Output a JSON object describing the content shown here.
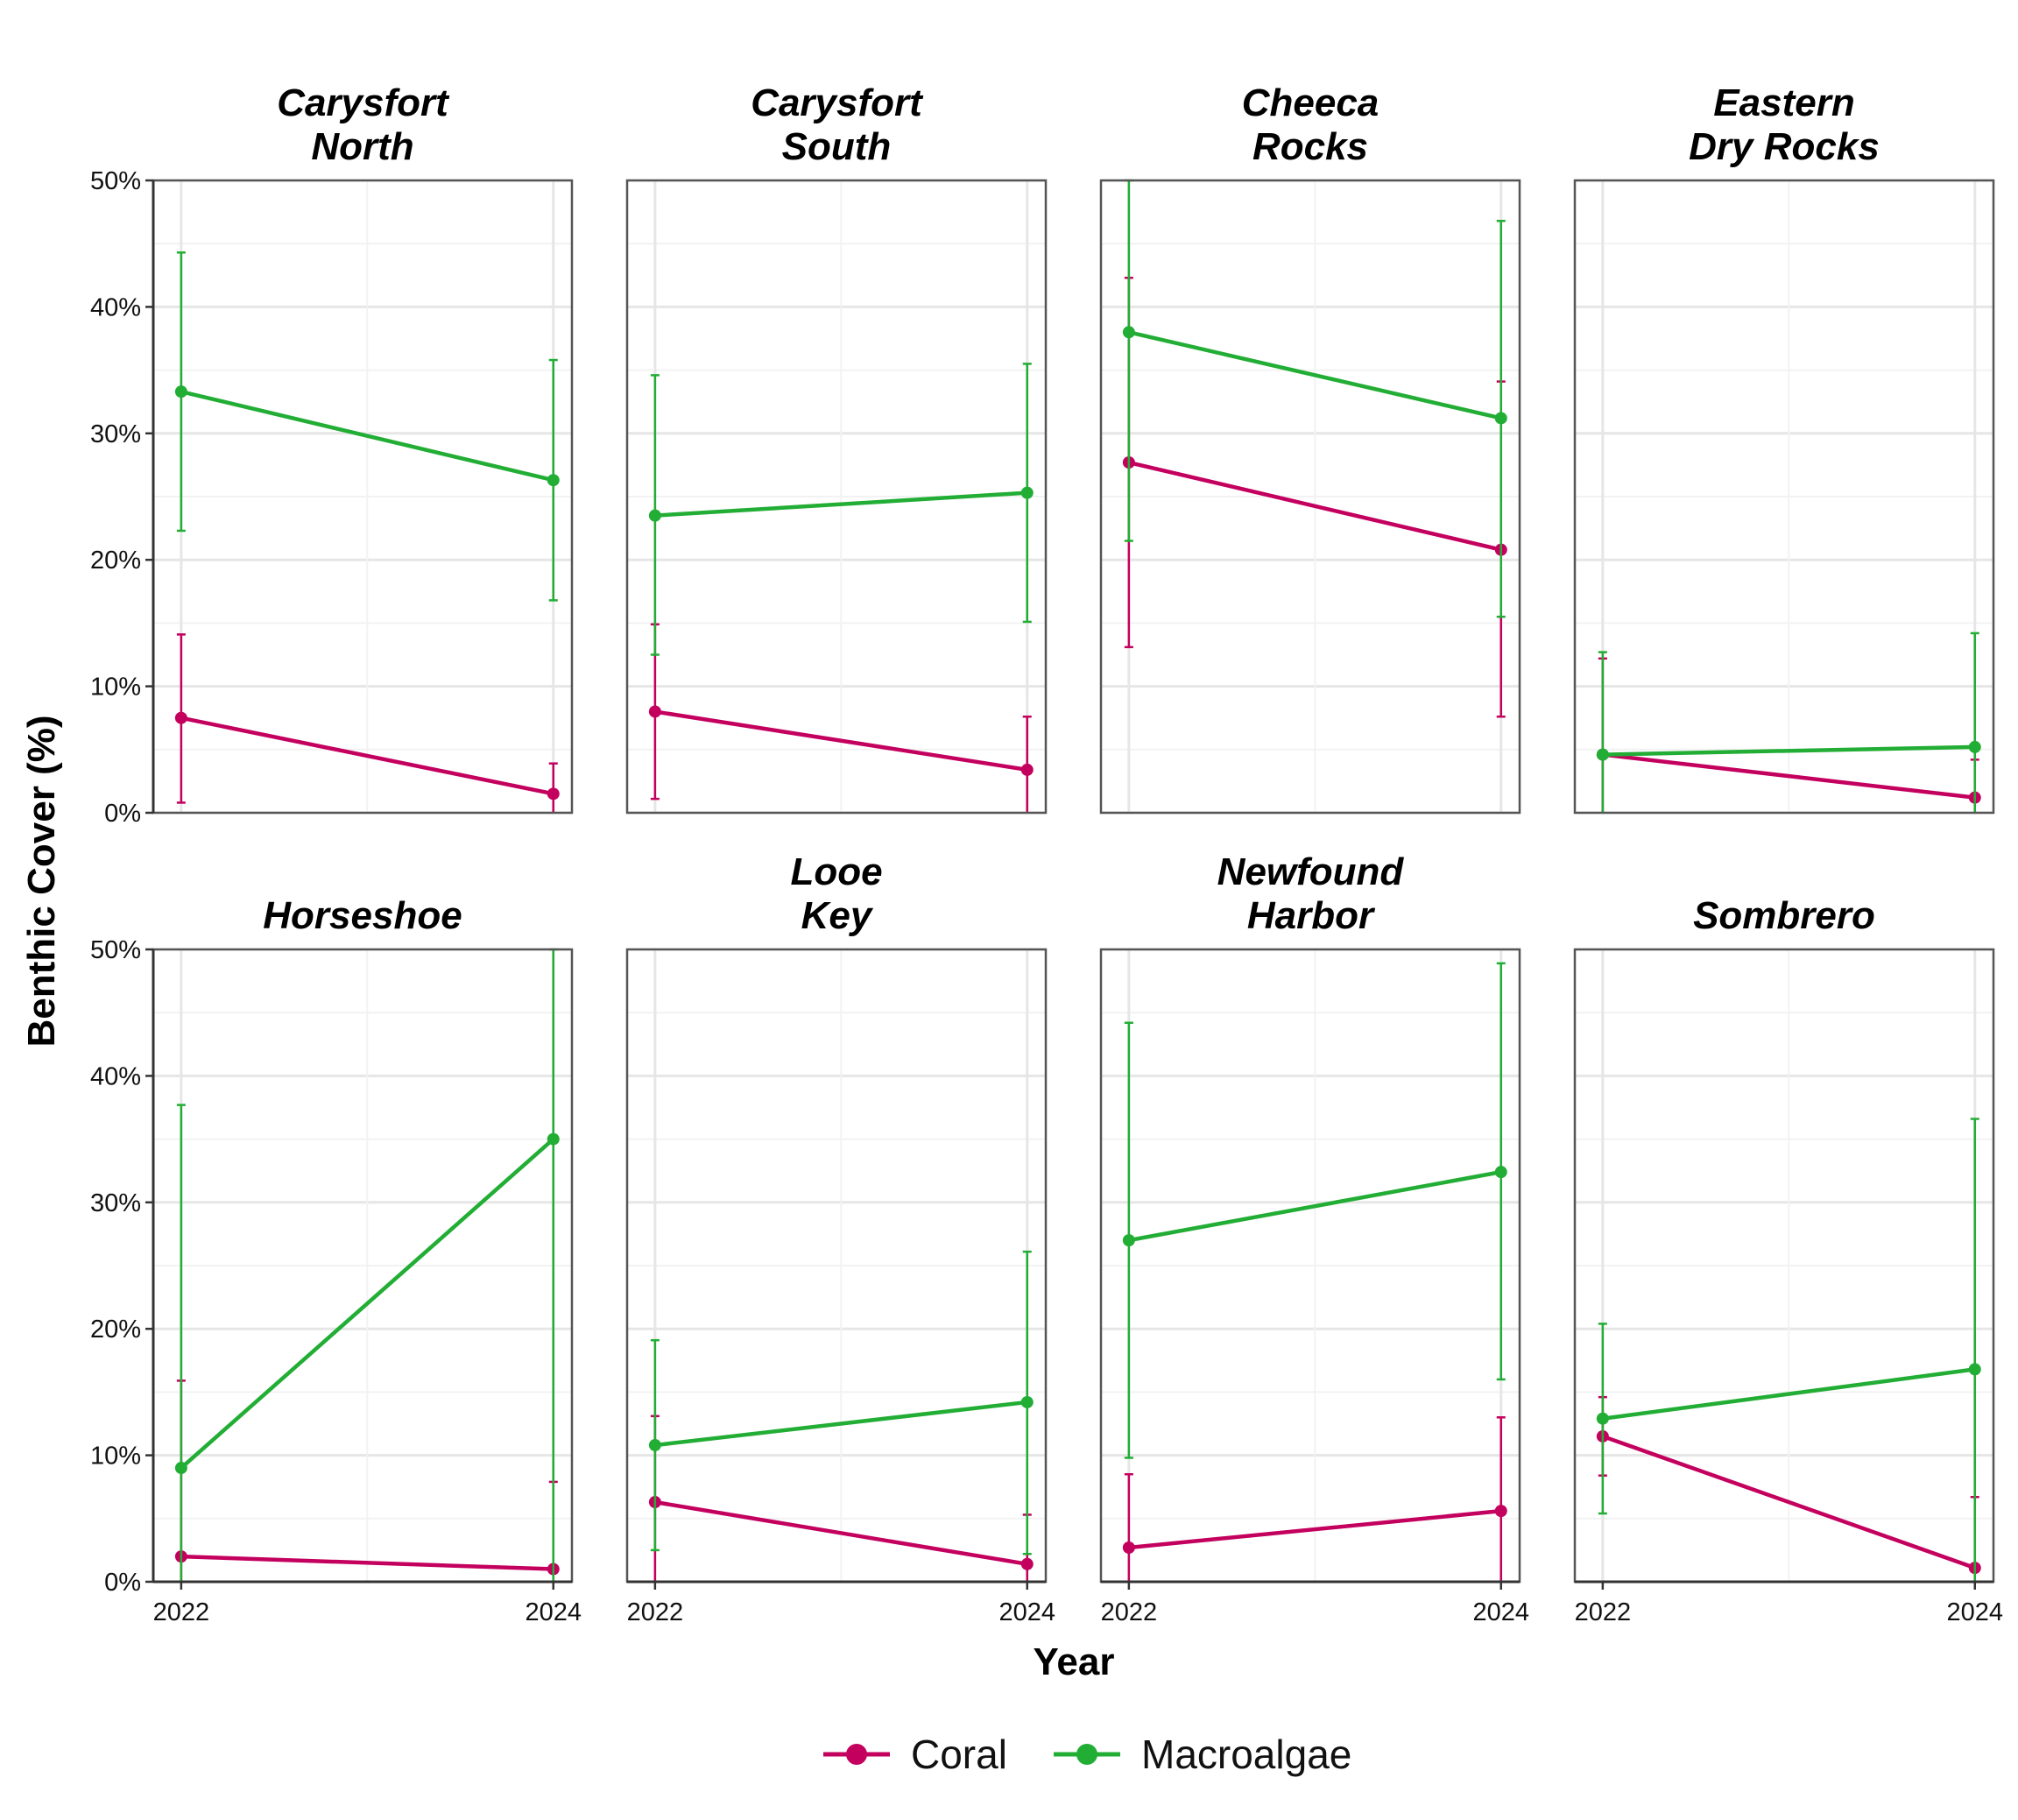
{
  "chart_data": {
    "type": "line",
    "facet_layout": {
      "rows": 2,
      "cols": 4
    },
    "xlabel": "Year",
    "ylabel": "Benthic Cover (%)",
    "x_ticks": [
      "2022",
      "2024"
    ],
    "x_values": [
      2022,
      2024
    ],
    "xlim": [
      2021.85,
      2024.1
    ],
    "ylim": [
      0,
      50
    ],
    "y_ticks": [
      0,
      10,
      20,
      30,
      40,
      50
    ],
    "y_tick_labels": [
      "0%",
      "10%",
      "20%",
      "30%",
      "40%",
      "50%"
    ],
    "grid": true,
    "error_bars": true,
    "legend": {
      "position": "bottom",
      "entries": [
        {
          "name": "Coral",
          "color": "#C4005F"
        },
        {
          "name": "Macroalgae",
          "color": "#22AD35"
        }
      ]
    },
    "facets": [
      {
        "title_lines": [
          "Carysfort",
          "North"
        ],
        "series": [
          {
            "name": "Coral",
            "values": [
              7.5,
              1.5
            ],
            "lower": [
              0.8,
              0
            ],
            "upper": [
              14.1,
              3.9
            ]
          },
          {
            "name": "Macroalgae",
            "values": [
              33.3,
              26.3
            ],
            "lower": [
              22.3,
              16.8
            ],
            "upper": [
              44.3,
              35.8
            ]
          }
        ]
      },
      {
        "title_lines": [
          "Carysfort",
          "South"
        ],
        "series": [
          {
            "name": "Coral",
            "values": [
              8.0,
              3.4
            ],
            "lower": [
              1.1,
              0
            ],
            "upper": [
              14.9,
              7.6
            ]
          },
          {
            "name": "Macroalgae",
            "values": [
              23.5,
              25.3
            ],
            "lower": [
              12.5,
              15.1
            ],
            "upper": [
              34.6,
              35.5
            ]
          }
        ]
      },
      {
        "title_lines": [
          "Cheeca",
          "Rocks"
        ],
        "series": [
          {
            "name": "Coral",
            "values": [
              27.7,
              20.8
            ],
            "lower": [
              13.1,
              7.6
            ],
            "upper": [
              42.3,
              34.1
            ]
          },
          {
            "name": "Macroalgae",
            "values": [
              38.0,
              31.2
            ],
            "lower": [
              21.5,
              15.5
            ],
            "upper": [
              50.0,
              46.8
            ]
          }
        ]
      },
      {
        "title_lines": [
          "Eastern",
          "Dry Rocks"
        ],
        "series": [
          {
            "name": "Coral",
            "values": [
              4.6,
              1.2
            ],
            "lower": [
              0,
              0
            ],
            "upper": [
              12.2,
              4.2
            ]
          },
          {
            "name": "Macroalgae",
            "values": [
              4.6,
              5.2
            ],
            "lower": [
              0,
              0
            ],
            "upper": [
              12.7,
              14.2
            ]
          }
        ]
      },
      {
        "title_lines": [
          "Horseshoe"
        ],
        "series": [
          {
            "name": "Coral",
            "values": [
              2.0,
              1.0
            ],
            "lower": [
              0,
              0
            ],
            "upper": [
              15.9,
              7.9
            ]
          },
          {
            "name": "Macroalgae",
            "values": [
              9.0,
              35.0
            ],
            "lower": [
              0,
              0
            ],
            "upper": [
              37.7,
              50.0
            ]
          }
        ]
      },
      {
        "title_lines": [
          "Looe",
          "Key"
        ],
        "series": [
          {
            "name": "Coral",
            "values": [
              6.3,
              1.4
            ],
            "lower": [
              0,
              0
            ],
            "upper": [
              13.1,
              5.3
            ]
          },
          {
            "name": "Macroalgae",
            "values": [
              10.8,
              14.2
            ],
            "lower": [
              2.5,
              2.2
            ],
            "upper": [
              19.1,
              26.1
            ]
          }
        ]
      },
      {
        "title_lines": [
          "Newfound",
          "Harbor"
        ],
        "series": [
          {
            "name": "Coral",
            "values": [
              2.7,
              5.6
            ],
            "lower": [
              0,
              0
            ],
            "upper": [
              8.5,
              13.0
            ]
          },
          {
            "name": "Macroalgae",
            "values": [
              27.0,
              32.4
            ],
            "lower": [
              9.8,
              16.0
            ],
            "upper": [
              44.2,
              48.9
            ]
          }
        ]
      },
      {
        "title_lines": [
          "Sombrero"
        ],
        "series": [
          {
            "name": "Coral",
            "values": [
              11.5,
              1.1
            ],
            "lower": [
              8.4,
              0
            ],
            "upper": [
              14.6,
              6.7
            ]
          },
          {
            "name": "Macroalgae",
            "values": [
              12.9,
              16.8
            ],
            "lower": [
              5.4,
              0
            ],
            "upper": [
              20.4,
              36.6
            ]
          }
        ]
      }
    ]
  }
}
